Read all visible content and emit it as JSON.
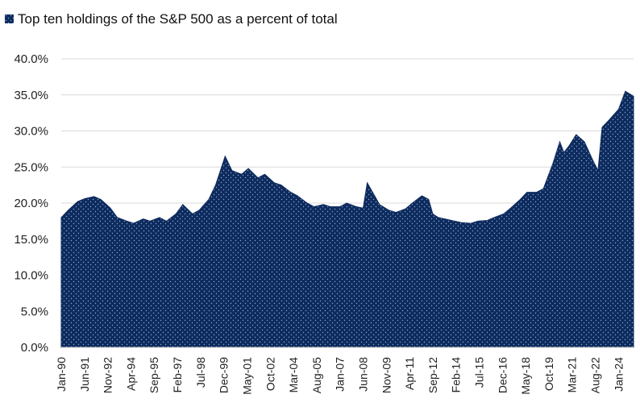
{
  "chart_data": {
    "type": "area",
    "legend": {
      "label": "Top ten holdings of the S&P 500 as a percent of total",
      "placement": "top-left"
    },
    "series_color": "#0d2b5e",
    "fill_pattern": "dotted",
    "grid": true,
    "y_axis": {
      "min": 0,
      "max": 40,
      "step": 5,
      "tick_labels": [
        "0.0%",
        "5.0%",
        "10.0%",
        "15.0%",
        "20.0%",
        "25.0%",
        "30.0%",
        "35.0%",
        "40.0%"
      ]
    },
    "x_axis": {
      "tick_labels": [
        "Jan-90",
        "Jun-91",
        "Nov-92",
        "Apr-94",
        "Sep-95",
        "Feb-97",
        "Jul-98",
        "Dec-99",
        "May-01",
        "Oct-02",
        "Mar-04",
        "Aug-05",
        "Jan-07",
        "Jun-08",
        "Nov-09",
        "Apr-11",
        "Sep-12",
        "Feb-14",
        "Jul-15",
        "Dec-16",
        "May-18",
        "Oct-19",
        "Mar-21",
        "Aug-22",
        "Jan-24"
      ],
      "range": [
        "1990-01",
        "2024-12"
      ]
    },
    "series": [
      {
        "x": [
          "1990-01",
          "1990-06",
          "1991-01",
          "1991-06",
          "1992-01",
          "1992-06",
          "1993-01",
          "1993-06",
          "1994-01",
          "1994-06",
          "1995-01",
          "1995-06",
          "1996-01",
          "1996-06",
          "1997-01",
          "1997-06",
          "1998-01",
          "1998-06",
          "1999-01",
          "1999-06",
          "2000-01",
          "2000-06",
          "2001-01",
          "2001-06",
          "2002-01",
          "2002-06",
          "2003-01",
          "2003-06",
          "2004-01",
          "2004-06",
          "2005-01",
          "2005-06",
          "2006-01",
          "2006-06",
          "2007-01",
          "2007-06",
          "2008-01",
          "2008-06",
          "2008-09",
          "2009-01",
          "2009-06",
          "2010-01",
          "2010-06",
          "2011-01",
          "2011-06",
          "2012-01",
          "2012-06",
          "2012-09",
          "2013-01",
          "2013-06",
          "2014-01",
          "2014-06",
          "2015-01",
          "2015-06",
          "2016-01",
          "2016-06",
          "2017-01",
          "2017-06",
          "2018-01",
          "2018-06",
          "2019-01",
          "2019-06",
          "2020-01",
          "2020-06",
          "2020-09",
          "2021-01",
          "2021-06",
          "2021-12",
          "2022-06",
          "2022-10",
          "2023-01",
          "2023-06",
          "2024-01",
          "2024-06",
          "2024-12"
        ],
        "values": [
          18.0,
          19.0,
          20.2,
          20.6,
          20.9,
          20.5,
          19.3,
          18.0,
          17.5,
          17.2,
          17.8,
          17.5,
          18.0,
          17.5,
          18.5,
          19.8,
          18.5,
          19.0,
          20.5,
          22.5,
          26.5,
          24.5,
          24.0,
          24.8,
          23.5,
          24.0,
          22.8,
          22.5,
          21.5,
          21.0,
          20.0,
          19.5,
          19.8,
          19.5,
          19.5,
          20.0,
          19.5,
          19.3,
          22.8,
          21.5,
          19.8,
          19.0,
          18.7,
          19.2,
          20.0,
          21.0,
          20.5,
          18.5,
          18.0,
          17.8,
          17.5,
          17.3,
          17.2,
          17.5,
          17.6,
          18.0,
          18.5,
          19.3,
          20.5,
          21.5,
          21.5,
          22.0,
          25.5,
          28.5,
          27.0,
          28.0,
          29.5,
          28.5,
          26.0,
          24.5,
          30.5,
          31.5,
          33.0,
          35.5,
          34.8
        ]
      }
    ]
  }
}
